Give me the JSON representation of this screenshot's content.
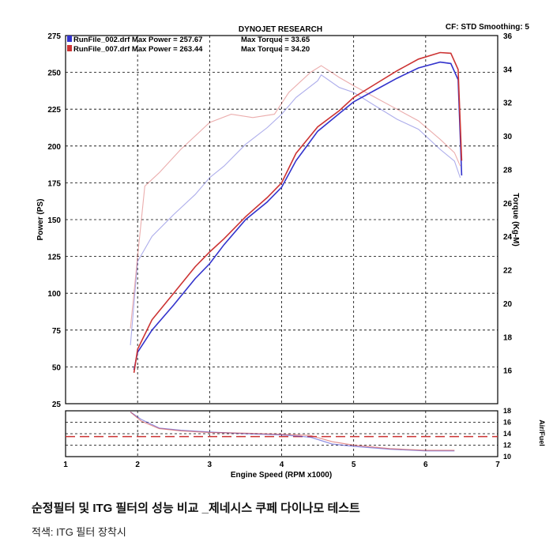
{
  "header": {
    "title": "DYNOJET RESEARCH",
    "settings": "CF: STD  Smoothing: 5"
  },
  "legend": [
    {
      "label": "RunFile_002.drf Max Power = 257.67",
      "torque": "Max Torque = 33.65",
      "color": "#3333cc"
    },
    {
      "label": "RunFile_007.drf Max Power = 263.44",
      "torque": "Max Torque = 34.20",
      "color": "#cc3333"
    }
  ],
  "caption": {
    "title": "순정필터 및 ITG 필터의 성능 비교 _제네시스 쿠페 다이나모 테스트",
    "subtitle": "적색: ITG 필터 장착시"
  },
  "chart_data": {
    "type": "line",
    "xlabel": "Engine Speed (RPM x1000)",
    "ylabel_left": "Power (PS)",
    "ylabel_right": "Torque (Kg-M)",
    "ylabel_af": "Air/Fuel",
    "xlim": [
      1,
      7
    ],
    "ylim_power": [
      25,
      275
    ],
    "ylim_torque": [
      14,
      36
    ],
    "ylim_af": [
      10,
      18
    ],
    "x_ticks": [
      "1",
      "2",
      "3",
      "4",
      "5",
      "6",
      "7"
    ],
    "power_ticks": [
      "25",
      "50",
      "75",
      "100",
      "125",
      "150",
      "175",
      "200",
      "225",
      "250",
      "275"
    ],
    "torque_ticks": [
      "16",
      "18",
      "20",
      "22",
      "24",
      "26",
      "28",
      "30",
      "32",
      "34",
      "36"
    ],
    "af_ticks": [
      "10",
      "12",
      "14",
      "16",
      "18"
    ],
    "af_target": 13.5,
    "grid": true,
    "series": [
      {
        "name": "RunFile_002.drf",
        "color": "#3333cc",
        "power": [
          [
            1.95,
            48
          ],
          [
            2.0,
            60
          ],
          [
            2.2,
            75
          ],
          [
            2.5,
            92
          ],
          [
            2.8,
            110
          ],
          [
            3.0,
            120
          ],
          [
            3.2,
            133
          ],
          [
            3.5,
            150
          ],
          [
            3.8,
            162
          ],
          [
            4.0,
            172
          ],
          [
            4.2,
            190
          ],
          [
            4.5,
            210
          ],
          [
            4.8,
            222
          ],
          [
            5.0,
            230
          ],
          [
            5.3,
            238
          ],
          [
            5.6,
            246
          ],
          [
            5.9,
            253
          ],
          [
            6.2,
            257
          ],
          [
            6.35,
            256
          ],
          [
            6.45,
            245
          ],
          [
            6.5,
            180
          ]
        ],
        "torque": [
          [
            1.9,
            17.5
          ],
          [
            2.0,
            22.5
          ],
          [
            2.2,
            24.0
          ],
          [
            2.5,
            25.3
          ],
          [
            2.8,
            26.5
          ],
          [
            3.0,
            27.5
          ],
          [
            3.2,
            28.2
          ],
          [
            3.5,
            29.5
          ],
          [
            3.8,
            30.5
          ],
          [
            4.0,
            31.3
          ],
          [
            4.2,
            32.3
          ],
          [
            4.5,
            33.3
          ],
          [
            4.55,
            33.65
          ],
          [
            4.8,
            32.9
          ],
          [
            5.0,
            32.6
          ],
          [
            5.3,
            31.8
          ],
          [
            5.6,
            31.0
          ],
          [
            5.9,
            30.4
          ],
          [
            6.2,
            29.2
          ],
          [
            6.4,
            28.5
          ],
          [
            6.48,
            27.5
          ]
        ],
        "af": [
          [
            1.9,
            17.8
          ],
          [
            2.05,
            16.5
          ],
          [
            2.3,
            15.0
          ],
          [
            2.6,
            14.6
          ],
          [
            3.0,
            14.3
          ],
          [
            3.5,
            14.0
          ],
          [
            4.0,
            13.8
          ],
          [
            4.4,
            13.4
          ],
          [
            4.7,
            12.2
          ],
          [
            5.0,
            11.8
          ],
          [
            5.5,
            11.3
          ],
          [
            6.0,
            11.0
          ],
          [
            6.4,
            11.0
          ]
        ]
      },
      {
        "name": "RunFile_007.drf",
        "color": "#cc3333",
        "power": [
          [
            1.95,
            46
          ],
          [
            2.0,
            62
          ],
          [
            2.2,
            82
          ],
          [
            2.5,
            100
          ],
          [
            2.8,
            118
          ],
          [
            3.0,
            128
          ],
          [
            3.2,
            137
          ],
          [
            3.5,
            152
          ],
          [
            3.8,
            165
          ],
          [
            4.0,
            175
          ],
          [
            4.2,
            195
          ],
          [
            4.5,
            213
          ],
          [
            4.8,
            224
          ],
          [
            5.0,
            233
          ],
          [
            5.3,
            242
          ],
          [
            5.6,
            251
          ],
          [
            5.9,
            259
          ],
          [
            6.2,
            263.44
          ],
          [
            6.35,
            263
          ],
          [
            6.45,
            252
          ],
          [
            6.5,
            190
          ]
        ],
        "torque": [
          [
            1.9,
            18.5
          ],
          [
            2.0,
            22.8
          ],
          [
            2.1,
            27.0
          ],
          [
            2.3,
            27.8
          ],
          [
            2.6,
            29.2
          ],
          [
            3.0,
            30.8
          ],
          [
            3.3,
            31.3
          ],
          [
            3.6,
            31.1
          ],
          [
            3.9,
            31.3
          ],
          [
            4.1,
            32.6
          ],
          [
            4.4,
            33.8
          ],
          [
            4.55,
            34.2
          ],
          [
            4.8,
            33.5
          ],
          [
            5.0,
            33.0
          ],
          [
            5.3,
            32.3
          ],
          [
            5.6,
            31.6
          ],
          [
            5.9,
            30.9
          ],
          [
            6.2,
            29.8
          ],
          [
            6.4,
            29.0
          ],
          [
            6.48,
            28.2
          ]
        ],
        "af": [
          [
            1.9,
            17.8
          ],
          [
            2.05,
            16.2
          ],
          [
            2.3,
            14.9
          ],
          [
            2.6,
            14.5
          ],
          [
            3.0,
            14.2
          ],
          [
            3.5,
            14.1
          ],
          [
            4.0,
            13.9
          ],
          [
            4.4,
            13.7
          ],
          [
            4.7,
            12.6
          ],
          [
            5.0,
            12.0
          ],
          [
            5.5,
            11.4
          ],
          [
            6.0,
            11.1
          ],
          [
            6.4,
            11.1
          ]
        ]
      }
    ]
  }
}
